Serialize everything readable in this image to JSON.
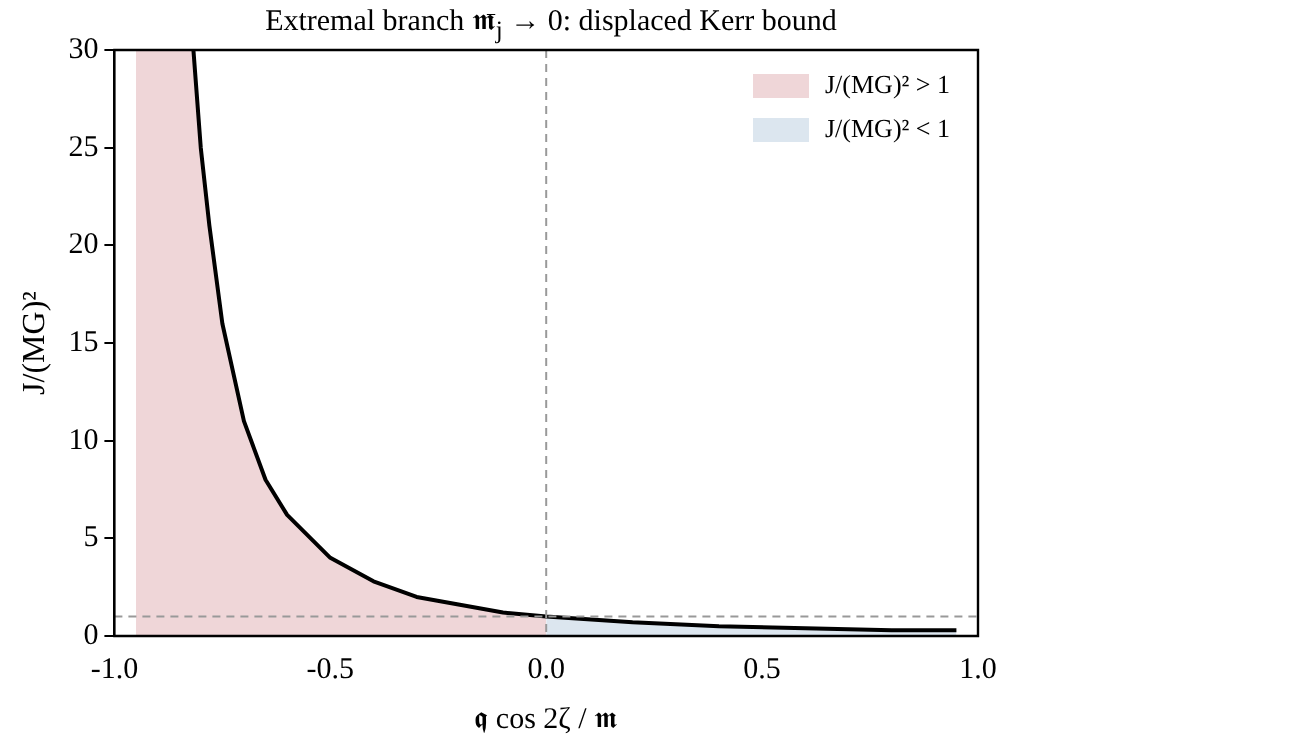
{
  "chart_data": {
    "type": "line",
    "title": "Extremal branch 𝖒̄$_{j}$ → 0: displaced Kerr bound",
    "xlabel": "𝖖 cos 2ζ / 𝖒",
    "ylabel": "J/(MG)²",
    "xlim": [
      -1,
      1
    ],
    "xticks": [
      {
        "value": -1,
        "label": "-1.0"
      },
      {
        "value": -0.5,
        "label": "-0.5"
      },
      {
        "value": 0,
        "label": "0.0"
      },
      {
        "value": 0.5,
        "label": "0.5"
      },
      {
        "value": 1,
        "label": "1.0"
      }
    ],
    "ylim": [
      0,
      30
    ],
    "yticks": [
      0,
      5,
      10,
      15,
      20,
      25,
      30
    ],
    "grid": false,
    "legend": "top right",
    "series": [
      {
        "name": "J/(MG)² > 1",
        "type": "area",
        "color": "#efd6d8",
        "x": [
          -0.95,
          -0.817,
          -0.8,
          -0.78,
          -0.75,
          -0.7,
          -0.65,
          -0.6,
          -0.5,
          -0.4,
          -0.3,
          -0.2,
          -0.1,
          0
        ],
        "values": [
          30,
          30,
          25,
          21,
          16,
          11,
          8,
          6.2,
          4,
          2.8,
          2.0,
          1.6,
          1.2,
          1
        ]
      },
      {
        "name": "J/(MG)² < 1",
        "type": "area",
        "color": "#dce6ef",
        "x": [
          0,
          0.2,
          0.4,
          0.6,
          0.8,
          0.95
        ],
        "values": [
          1,
          0.7,
          0.5,
          0.4,
          0.3,
          0.3
        ]
      },
      {
        "type": "line",
        "color": "#000000",
        "x": [
          -0.817,
          -0.8,
          -0.78,
          -0.75,
          -0.7,
          -0.65,
          -0.6,
          -0.5,
          -0.4,
          -0.3,
          -0.2,
          -0.1,
          0,
          0.2,
          0.4,
          0.6,
          0.8,
          0.95
        ],
        "values": [
          30,
          25,
          21,
          16,
          11,
          8,
          6.2,
          4,
          2.8,
          2.0,
          1.6,
          1.2,
          1,
          0.7,
          0.5,
          0.4,
          0.3,
          0.3
        ]
      }
    ],
    "ref_lines": [
      {
        "axis": "y",
        "value": 1,
        "color": "#999999",
        "line_style": "dashed"
      },
      {
        "axis": "x",
        "value": 0,
        "color": "#999999",
        "line_style": "dashed"
      }
    ]
  }
}
